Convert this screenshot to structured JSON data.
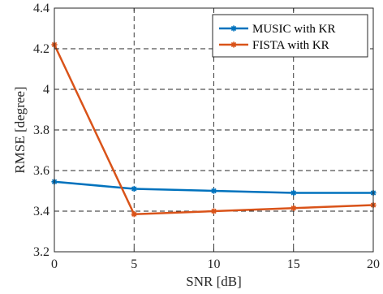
{
  "chart_data": {
    "type": "line",
    "x": [
      0,
      5,
      10,
      15,
      20
    ],
    "series": [
      {
        "name": "MUSIC with KR",
        "color": "#0072BD",
        "marker": "asterisk",
        "values": [
          3.545,
          3.51,
          3.5,
          3.49,
          3.49
        ]
      },
      {
        "name": "FISTA with KR",
        "color": "#D95319",
        "marker": "asterisk",
        "values": [
          4.22,
          3.385,
          3.4,
          3.415,
          3.43
        ]
      }
    ],
    "title": "",
    "xlabel": "SNR [dB]",
    "ylabel": "RMSE [degree]",
    "xlim": [
      0,
      20
    ],
    "ylim": [
      3.2,
      4.4
    ],
    "xticks": [
      0,
      5,
      10,
      15,
      20
    ],
    "yticks": [
      3.2,
      3.4,
      3.6,
      3.8,
      4,
      4.2,
      4.4
    ],
    "xtick_labels": [
      "0",
      "5",
      "10",
      "15",
      "20"
    ],
    "ytick_labels": [
      "3.2",
      "3.4",
      "3.6",
      "3.8",
      "4",
      "4.2",
      "4.4"
    ],
    "grid": true,
    "grid_style": "dashed",
    "legend_position": "top-right"
  }
}
